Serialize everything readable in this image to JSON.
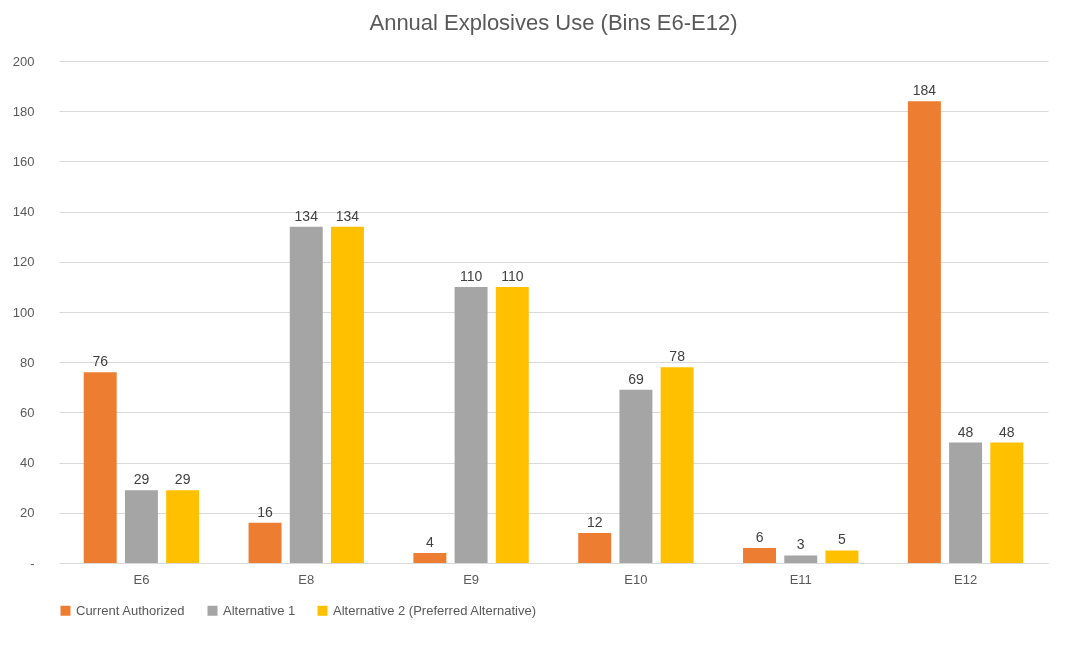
{
  "chart_data": {
    "type": "bar",
    "title": "Annual Explosives Use (Bins E6-E12)",
    "categories": [
      "E6",
      "E8",
      "E9",
      "E10",
      "E11",
      "E12"
    ],
    "series": [
      {
        "name": "Current Authorized",
        "color": "#ed7d31",
        "values": [
          76,
          16,
          4,
          12,
          6,
          184
        ]
      },
      {
        "name": "Alternative 1",
        "color": "#a5a5a5",
        "values": [
          29,
          134,
          110,
          69,
          3,
          48
        ]
      },
      {
        "name": "Alternative 2 (Preferred Alternative)",
        "color": "#ffc000",
        "values": [
          29,
          134,
          110,
          78,
          5,
          48
        ]
      }
    ],
    "ylim": [
      0,
      200
    ],
    "yticks": [
      {
        "value": 0,
        "label": "-"
      },
      20,
      40,
      60,
      80,
      100,
      120,
      140,
      160,
      180,
      200
    ],
    "grid": "y",
    "legend": "bottom",
    "data_labels": true
  }
}
